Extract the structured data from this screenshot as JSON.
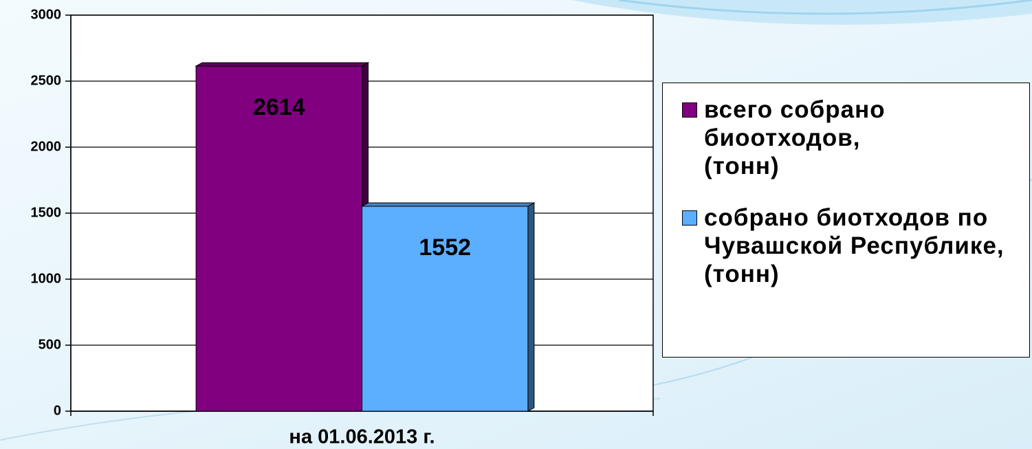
{
  "chart_data": {
    "type": "bar",
    "categories": [
      "на 01.06.2013 г."
    ],
    "series": [
      {
        "name": "всего собрано биоотходов, (тонн)",
        "color": "#800080",
        "values": [
          2614
        ]
      },
      {
        "name": "собрано биотходов по Чувашской Республике, (тонн)",
        "color": "#5caeff",
        "values": [
          1552
        ]
      }
    ],
    "ylim": [
      0,
      3000
    ],
    "yticks": [
      0,
      500,
      1000,
      1500,
      2000,
      2500,
      3000
    ],
    "grid": true,
    "legend": "right"
  }
}
